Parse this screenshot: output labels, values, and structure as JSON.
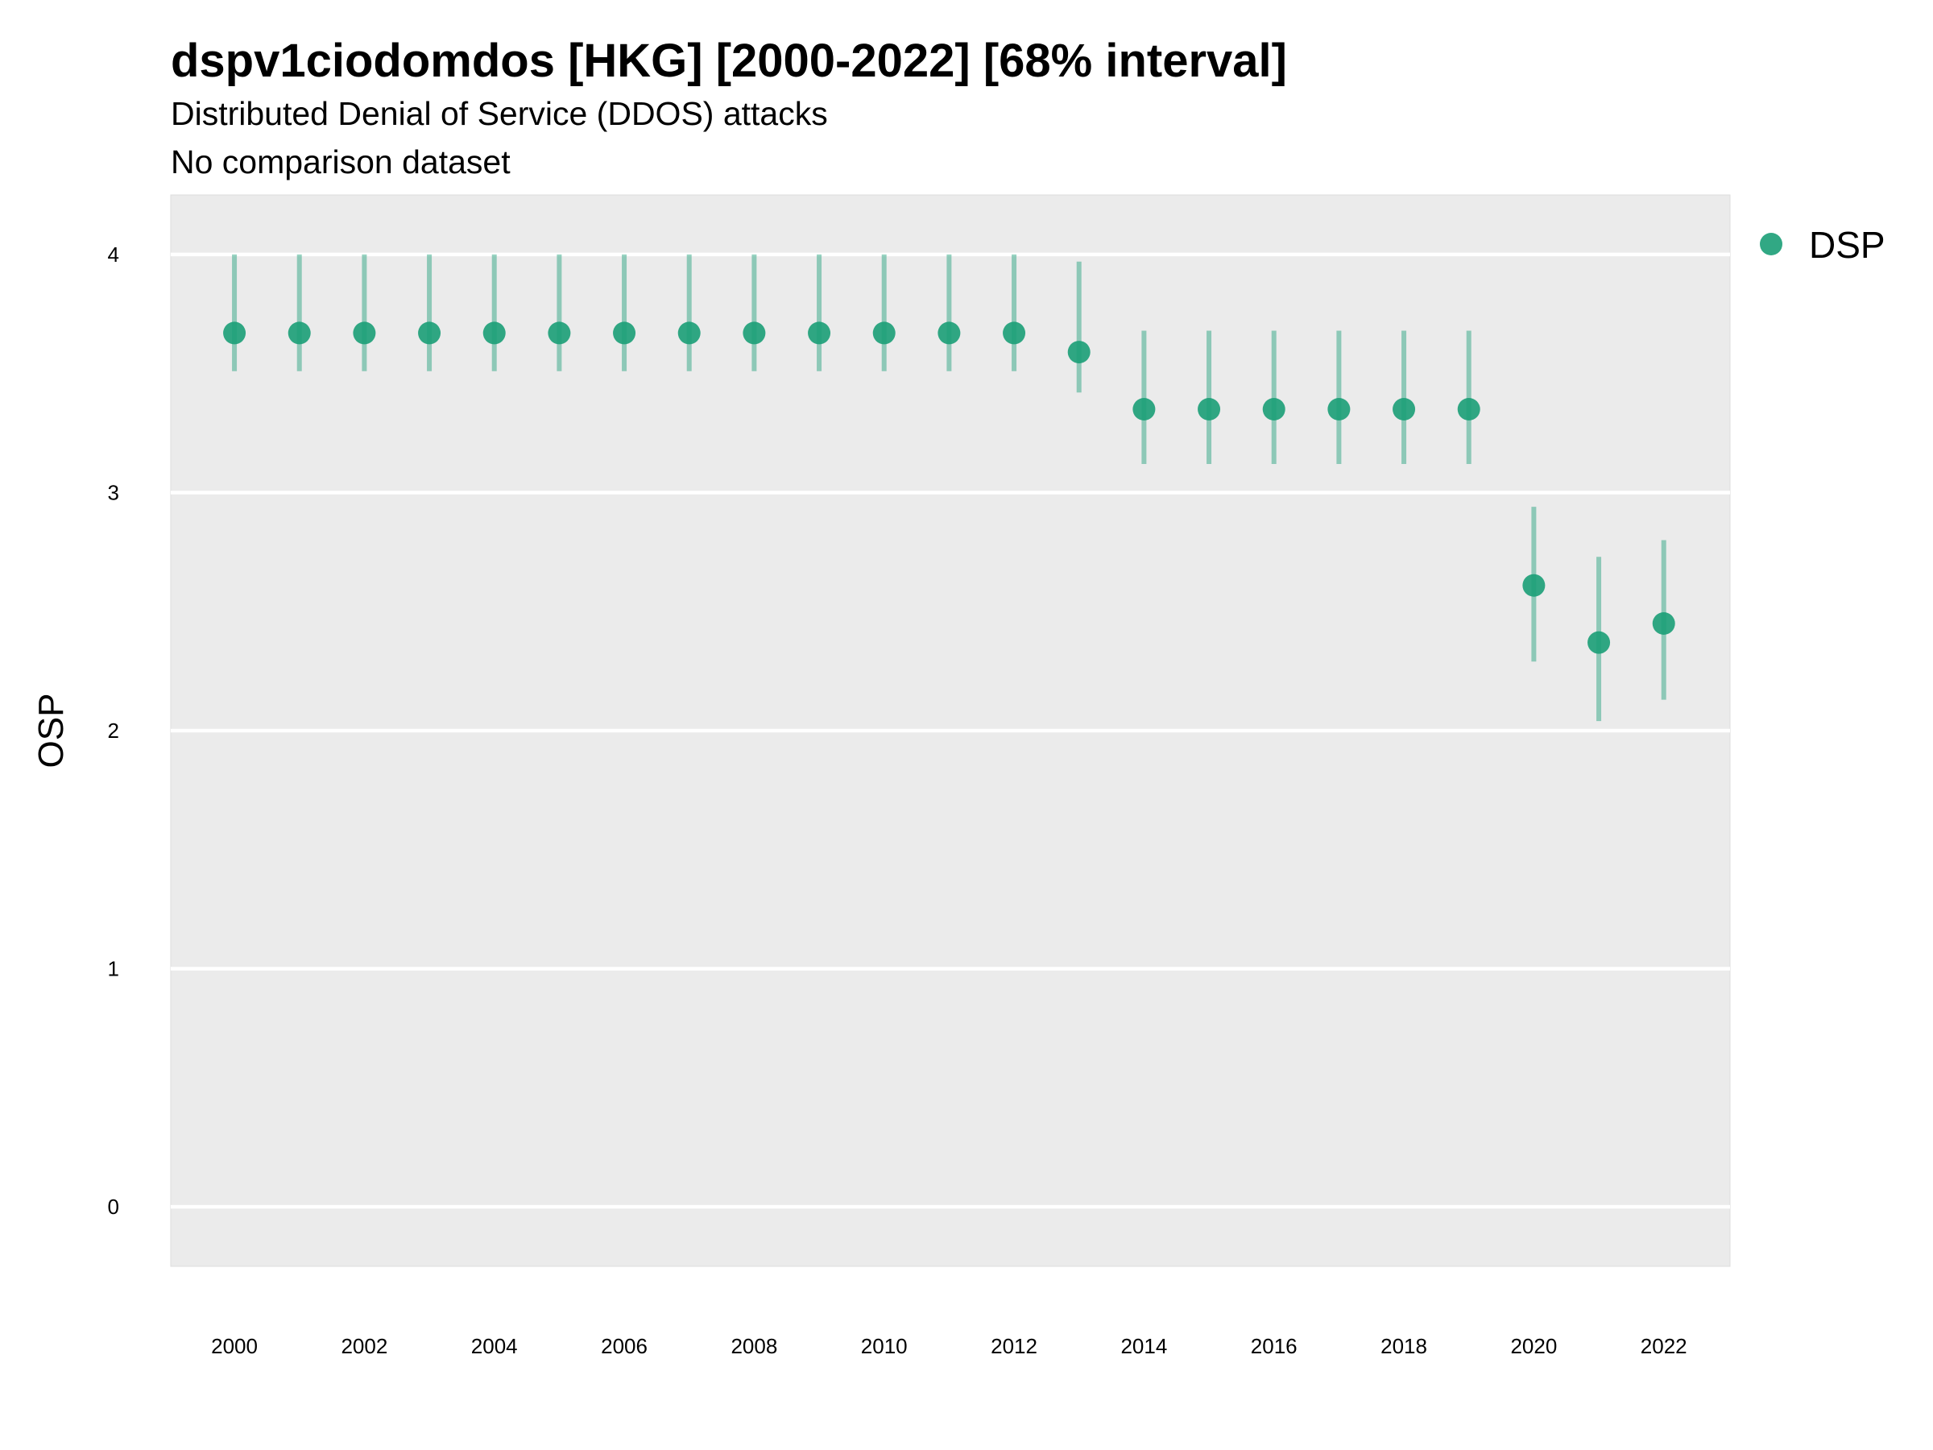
{
  "chart_data": {
    "type": "scatter",
    "title": "dspv1ciodomdos [HKG] [2000-2022] [68% interval]",
    "subtitle": "Distributed Denial of Service (DDOS) attacks",
    "caption": "No comparison dataset",
    "xlabel": "",
    "ylabel": "OSP",
    "ylim": [
      -0.25,
      4.25
    ],
    "yticks": [
      0,
      1,
      2,
      3,
      4
    ],
    "xlim": [
      1999.02,
      2023.02
    ],
    "xticks": [
      2000,
      2002,
      2004,
      2006,
      2008,
      2010,
      2012,
      2014,
      2016,
      2018,
      2020,
      2022
    ],
    "grid": true,
    "legend_position": "right",
    "series": [
      {
        "name": "DSP",
        "color": "#1b9e77",
        "x": [
          2000,
          2001,
          2002,
          2003,
          2004,
          2005,
          2006,
          2007,
          2008,
          2009,
          2010,
          2011,
          2012,
          2013,
          2014,
          2015,
          2016,
          2017,
          2018,
          2019,
          2020,
          2021,
          2022
        ],
        "y": [
          3.67,
          3.67,
          3.67,
          3.67,
          3.67,
          3.67,
          3.67,
          3.67,
          3.67,
          3.67,
          3.67,
          3.67,
          3.67,
          3.59,
          3.35,
          3.35,
          3.35,
          3.35,
          3.35,
          3.35,
          2.61,
          2.37,
          2.45
        ],
        "lower": [
          3.51,
          3.51,
          3.51,
          3.51,
          3.51,
          3.51,
          3.51,
          3.51,
          3.51,
          3.51,
          3.51,
          3.51,
          3.51,
          3.42,
          3.12,
          3.12,
          3.12,
          3.12,
          3.12,
          3.12,
          2.29,
          2.04,
          2.13
        ],
        "upper": [
          4.0,
          4.0,
          4.0,
          4.0,
          4.0,
          4.0,
          4.0,
          4.0,
          4.0,
          4.0,
          4.0,
          4.0,
          4.0,
          3.97,
          3.68,
          3.68,
          3.68,
          3.68,
          3.68,
          3.68,
          2.94,
          2.73,
          2.8
        ]
      }
    ]
  }
}
